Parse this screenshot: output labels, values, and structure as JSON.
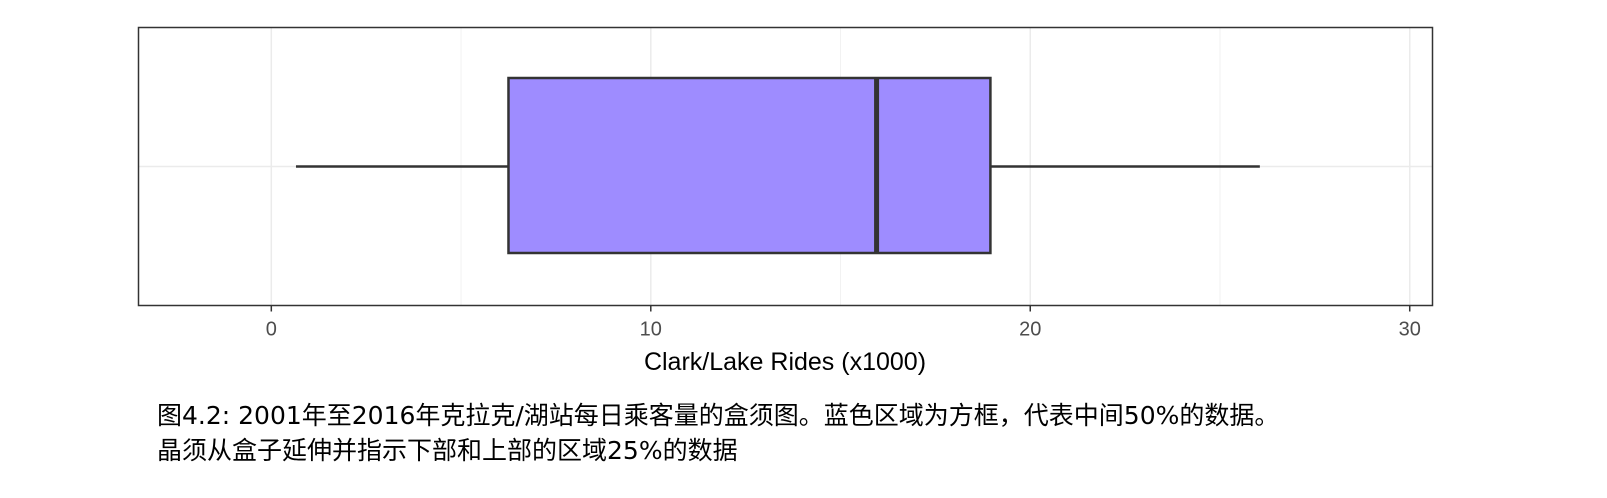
{
  "chart_data": {
    "type": "boxplot",
    "orientation": "horizontal",
    "xlabel": "Clark/Lake Rides (x1000)",
    "xlim": [
      -3.5,
      30.6
    ],
    "x_ticks": [
      0,
      10,
      20,
      30
    ],
    "x_tick_labels": [
      "0",
      "10",
      "20",
      "30"
    ],
    "grid": true,
    "box": {
      "whisker_low": 0.65,
      "q1": 6.25,
      "median": 15.95,
      "q3": 18.95,
      "whisker_high": 26.05
    },
    "fill_color": "#9e8cff",
    "line_color": "#333333"
  },
  "caption": {
    "line1": "图4.2: 2001年至2016年克拉克/湖站每日乘客量的盒须图。蓝色区域为方框，代表中间50%的数据。",
    "line2": "晶须从盒子延伸并指示下部和上部的区域25%的数据"
  }
}
